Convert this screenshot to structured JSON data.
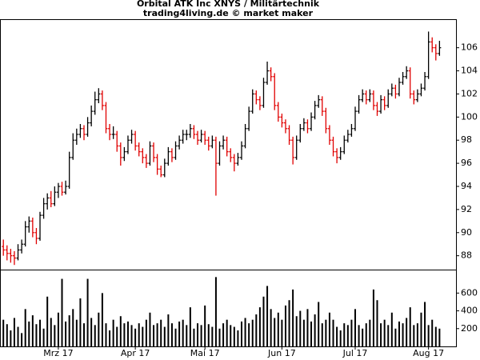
{
  "chart_data": {
    "type": "ohlc",
    "title": "Orbital ATK Inc XNYS / Militärtechnik",
    "subtitle": "trading4living.de © market maker",
    "up_color": "#000000",
    "down_color": "#e00000",
    "volume_color": "#000000",
    "xlim": [
      -0.7,
      123.5
    ],
    "xticks": [
      {
        "value": 15,
        "label": "Mrz 17"
      },
      {
        "value": 36,
        "label": "Apr 17"
      },
      {
        "value": 55,
        "label": "Mai 17"
      },
      {
        "value": 76,
        "label": "Jun 17"
      },
      {
        "value": 96,
        "label": "Jul 17"
      },
      {
        "value": 116,
        "label": "Aug 17"
      }
    ],
    "ylim": [
      86.8,
      108.4
    ],
    "yticks": [
      88,
      90,
      92,
      94,
      96,
      98,
      100,
      102,
      104,
      106
    ],
    "y2lim": [
      0,
      855
    ],
    "y2ticks": [
      200,
      400,
      600
    ],
    "ohlc": [
      [
        88.8,
        89.4,
        88.0,
        88.5
      ],
      [
        88.5,
        88.9,
        87.6,
        88.2
      ],
      [
        88.2,
        88.6,
        87.4,
        88.0
      ],
      [
        88.0,
        88.4,
        87.2,
        87.8
      ],
      [
        87.8,
        89.0,
        87.6,
        88.5
      ],
      [
        88.5,
        89.4,
        88.2,
        89.0
      ],
      [
        89.0,
        91.0,
        88.8,
        90.5
      ],
      [
        90.5,
        91.4,
        90.0,
        91.0
      ],
      [
        91.0,
        91.3,
        89.6,
        90.0
      ],
      [
        90.0,
        90.4,
        89.0,
        89.5
      ],
      [
        89.5,
        91.8,
        89.3,
        91.5
      ],
      [
        91.5,
        93.0,
        91.2,
        92.5
      ],
      [
        92.5,
        93.4,
        92.0,
        93.0
      ],
      [
        93.0,
        93.6,
        92.2,
        92.5
      ],
      [
        92.5,
        94.0,
        92.3,
        93.5
      ],
      [
        93.5,
        94.3,
        93.0,
        94.0
      ],
      [
        94.0,
        94.4,
        93.2,
        93.5
      ],
      [
        93.5,
        94.5,
        93.3,
        94.0
      ],
      [
        94.0,
        97.0,
        93.8,
        96.5
      ],
      [
        96.5,
        98.6,
        96.3,
        98.0
      ],
      [
        98.0,
        99.0,
        97.6,
        98.5
      ],
      [
        98.5,
        99.4,
        98.2,
        99.0
      ],
      [
        99.0,
        99.3,
        98.0,
        98.5
      ],
      [
        98.5,
        100.0,
        98.3,
        99.5
      ],
      [
        99.5,
        101.0,
        99.2,
        100.5
      ],
      [
        100.5,
        102.2,
        100.2,
        101.5
      ],
      [
        101.5,
        102.5,
        101.2,
        102.0
      ],
      [
        102.0,
        102.3,
        100.6,
        101.0
      ],
      [
        101.0,
        101.3,
        98.6,
        99.0
      ],
      [
        99.0,
        99.4,
        98.0,
        98.5
      ],
      [
        98.5,
        99.2,
        98.1,
        98.5
      ],
      [
        98.5,
        98.8,
        97.0,
        97.5
      ],
      [
        97.5,
        97.8,
        95.8,
        96.5
      ],
      [
        96.5,
        97.4,
        96.2,
        97.0
      ],
      [
        97.0,
        98.4,
        96.8,
        98.0
      ],
      [
        98.0,
        98.9,
        97.7,
        98.5
      ],
      [
        98.5,
        98.8,
        97.1,
        97.5
      ],
      [
        97.5,
        97.8,
        96.6,
        97.0
      ],
      [
        97.0,
        97.3,
        96.0,
        96.5
      ],
      [
        96.5,
        96.8,
        95.6,
        96.0
      ],
      [
        96.0,
        97.9,
        95.8,
        97.5
      ],
      [
        97.5,
        97.8,
        96.1,
        96.5
      ],
      [
        96.5,
        96.8,
        95.0,
        95.5
      ],
      [
        95.5,
        95.8,
        94.8,
        95.0
      ],
      [
        95.0,
        96.4,
        94.8,
        96.0
      ],
      [
        96.0,
        97.4,
        95.8,
        97.0
      ],
      [
        97.0,
        97.3,
        96.1,
        96.5
      ],
      [
        96.5,
        97.9,
        96.3,
        97.5
      ],
      [
        97.5,
        98.4,
        97.2,
        98.0
      ],
      [
        98.0,
        98.9,
        97.7,
        98.5
      ],
      [
        98.5,
        98.9,
        98.0,
        98.5
      ],
      [
        98.5,
        99.4,
        98.2,
        99.0
      ],
      [
        99.0,
        99.3,
        98.1,
        98.5
      ],
      [
        98.5,
        98.8,
        97.6,
        98.0
      ],
      [
        98.0,
        98.9,
        97.8,
        98.5
      ],
      [
        98.5,
        98.8,
        97.6,
        98.0
      ],
      [
        98.0,
        98.3,
        97.1,
        97.5
      ],
      [
        97.5,
        98.4,
        97.3,
        98.0
      ],
      [
        98.0,
        98.3,
        93.2,
        96.0
      ],
      [
        96.0,
        97.9,
        95.8,
        97.5
      ],
      [
        97.5,
        98.4,
        97.2,
        98.0
      ],
      [
        98.0,
        98.3,
        96.6,
        97.0
      ],
      [
        97.0,
        97.3,
        96.1,
        96.5
      ],
      [
        96.5,
        96.8,
        95.3,
        96.0
      ],
      [
        96.0,
        96.9,
        95.8,
        96.5
      ],
      [
        96.5,
        97.9,
        96.3,
        97.5
      ],
      [
        97.5,
        99.4,
        97.3,
        99.0
      ],
      [
        99.0,
        100.9,
        98.8,
        100.5
      ],
      [
        100.5,
        102.4,
        100.3,
        102.0
      ],
      [
        102.0,
        102.3,
        101.1,
        101.5
      ],
      [
        101.5,
        101.8,
        100.6,
        101.0
      ],
      [
        101.0,
        103.4,
        100.8,
        103.0
      ],
      [
        103.0,
        104.8,
        102.8,
        104.0
      ],
      [
        104.0,
        104.3,
        103.1,
        103.5
      ],
      [
        103.5,
        103.8,
        100.6,
        101.0
      ],
      [
        101.0,
        101.3,
        99.6,
        100.0
      ],
      [
        100.0,
        100.3,
        99.1,
        99.5
      ],
      [
        99.5,
        99.8,
        98.6,
        99.0
      ],
      [
        99.0,
        99.3,
        97.6,
        98.0
      ],
      [
        98.0,
        98.3,
        95.9,
        96.5
      ],
      [
        96.5,
        98.4,
        96.3,
        98.0
      ],
      [
        98.0,
        99.4,
        97.8,
        99.0
      ],
      [
        99.0,
        99.9,
        98.8,
        99.5
      ],
      [
        99.5,
        99.8,
        98.6,
        99.0
      ],
      [
        99.0,
        100.4,
        98.8,
        100.0
      ],
      [
        100.0,
        101.4,
        99.8,
        101.0
      ],
      [
        101.0,
        101.9,
        100.8,
        101.5
      ],
      [
        101.5,
        101.8,
        100.1,
        100.5
      ],
      [
        100.5,
        100.8,
        98.6,
        99.0
      ],
      [
        99.0,
        99.3,
        97.6,
        98.0
      ],
      [
        98.0,
        98.3,
        96.6,
        97.0
      ],
      [
        97.0,
        97.3,
        96.0,
        96.5
      ],
      [
        96.5,
        97.4,
        96.3,
        97.0
      ],
      [
        97.0,
        98.4,
        96.8,
        98.0
      ],
      [
        98.0,
        98.9,
        97.8,
        98.5
      ],
      [
        98.5,
        99.4,
        98.3,
        99.0
      ],
      [
        99.0,
        100.9,
        98.8,
        100.5
      ],
      [
        100.5,
        101.9,
        100.3,
        101.5
      ],
      [
        101.5,
        102.4,
        101.3,
        102.0
      ],
      [
        102.0,
        102.3,
        101.1,
        101.5
      ],
      [
        101.5,
        102.4,
        101.3,
        102.0
      ],
      [
        102.0,
        102.3,
        100.6,
        101.0
      ],
      [
        101.0,
        101.3,
        100.1,
        100.5
      ],
      [
        100.5,
        101.9,
        100.3,
        101.5
      ],
      [
        101.5,
        101.8,
        100.6,
        101.0
      ],
      [
        101.0,
        102.4,
        100.8,
        102.0
      ],
      [
        102.0,
        102.9,
        101.8,
        102.5
      ],
      [
        102.5,
        102.8,
        101.6,
        102.0
      ],
      [
        102.0,
        103.4,
        101.8,
        103.0
      ],
      [
        103.0,
        103.9,
        102.8,
        103.5
      ],
      [
        103.5,
        104.4,
        103.3,
        104.0
      ],
      [
        104.0,
        104.3,
        101.6,
        102.0
      ],
      [
        102.0,
        102.3,
        101.1,
        101.5
      ],
      [
        101.5,
        102.4,
        101.3,
        102.0
      ],
      [
        102.0,
        102.9,
        101.8,
        102.5
      ],
      [
        102.5,
        103.9,
        102.3,
        103.5
      ],
      [
        103.5,
        107.4,
        103.3,
        106.5
      ],
      [
        106.5,
        106.9,
        105.6,
        106.0
      ],
      [
        106.0,
        106.3,
        104.9,
        105.5
      ],
      [
        105.5,
        106.6,
        105.3,
        106.0
      ]
    ],
    "volume": [
      300,
      250,
      180,
      320,
      220,
      150,
      420,
      280,
      350,
      250,
      300,
      200,
      560,
      320,
      240,
      380,
      760,
      280,
      350,
      420,
      300,
      540,
      260,
      760,
      320,
      240,
      380,
      600,
      260,
      180,
      300,
      220,
      340,
      260,
      280,
      240,
      200,
      260,
      220,
      300,
      380,
      240,
      260,
      300,
      220,
      360,
      260,
      200,
      280,
      300,
      240,
      440,
      200,
      260,
      240,
      460,
      250,
      220,
      780,
      200,
      260,
      300,
      240,
      220,
      180,
      280,
      320,
      260,
      300,
      360,
      440,
      560,
      680,
      420,
      320,
      380,
      300,
      460,
      520,
      640,
      340,
      400,
      300,
      420,
      280,
      360,
      500,
      260,
      300,
      380,
      300,
      220,
      180,
      260,
      240,
      300,
      420,
      240,
      200,
      260,
      300,
      640,
      520,
      260,
      300,
      240,
      380,
      200,
      280,
      260,
      320,
      440,
      240,
      260,
      380,
      500,
      240,
      300,
      220,
      200
    ]
  }
}
